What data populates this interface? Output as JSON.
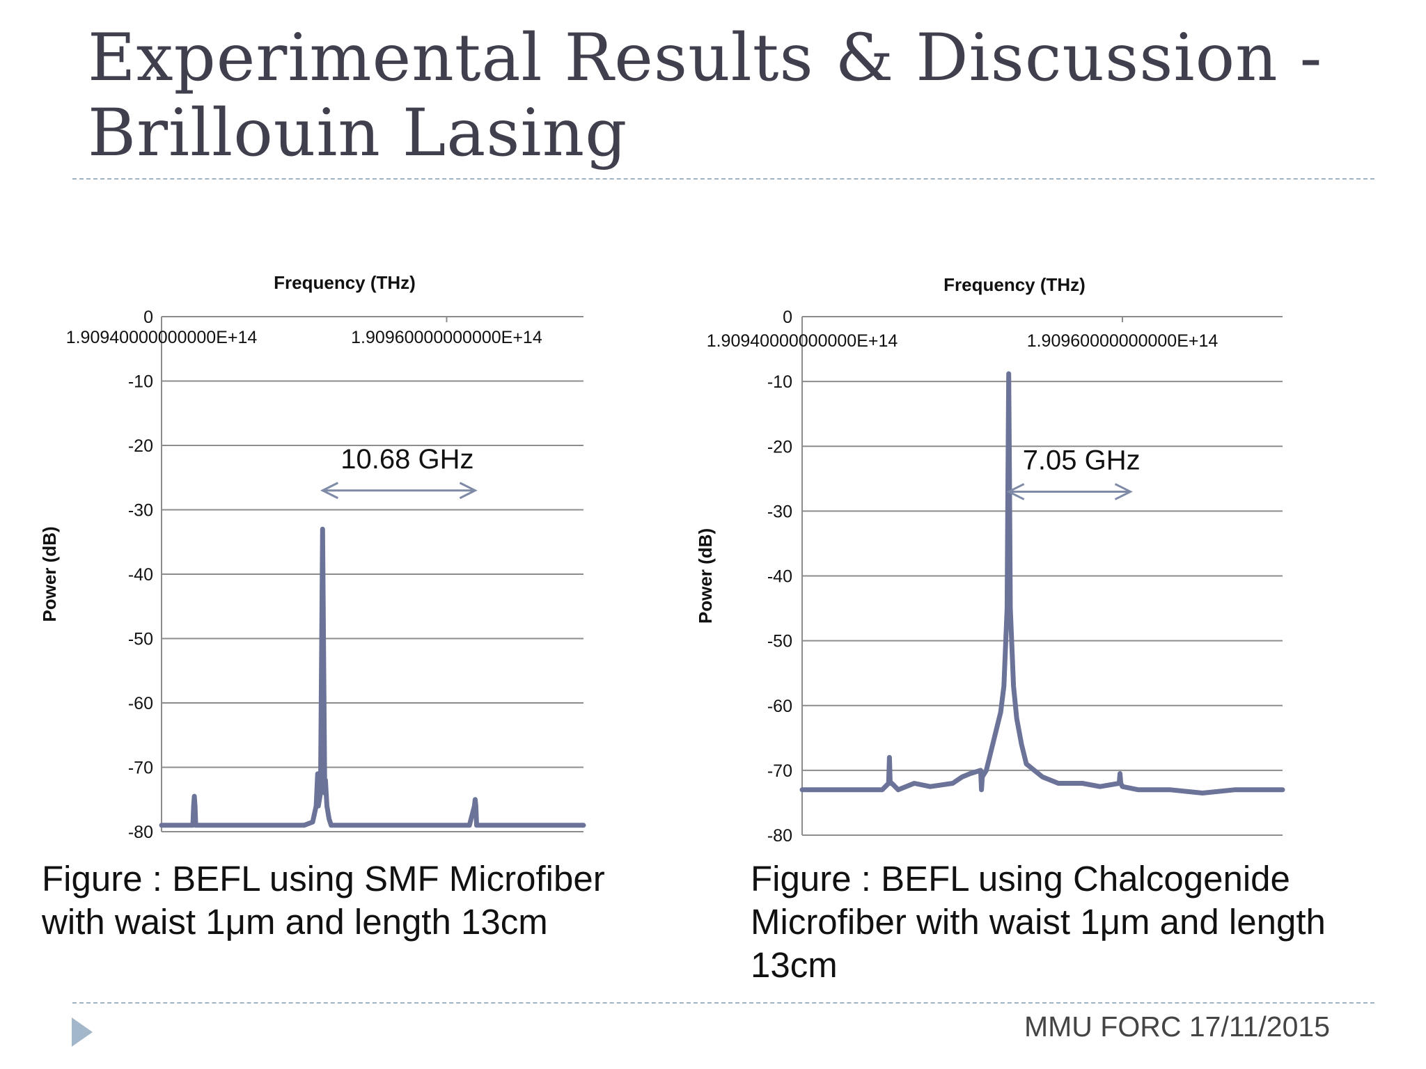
{
  "slide": {
    "title": "Experimental Results & Discussion - Brillouin Lasing",
    "footer": "MMU FORC 17/11/2015"
  },
  "captions": [
    "Figure : BEFL using SMF Microfiber with waist 1μm and length 13cm",
    "Figure : BEFL using Chalcogenide Microfiber with waist 1μm and length 13cm"
  ],
  "colors": {
    "series": "#6b7398",
    "grid": "#8c8c8c",
    "annotation": "#7e8aa6",
    "accent": "#a3b7ca"
  },
  "chart_data": [
    {
      "type": "line",
      "xlabel": "Frequency (THz)",
      "ylabel": "Power (dB)",
      "xlim": [
        190940000000000.0,
        190969600000000.0
      ],
      "ylim": [
        -80,
        0
      ],
      "yticks": [
        0,
        -10,
        -20,
        -30,
        -40,
        -50,
        -60,
        -70,
        -80
      ],
      "xticks": [
        190940000000000.0,
        190960000000000.0
      ],
      "xtick_labels": [
        "1.90940000000000E+14",
        "1.90960000000000E+14"
      ],
      "grid": true,
      "annotation": {
        "text": "10.68 GHz",
        "from": 190951300000000.0,
        "to": 190962000000000.0,
        "y": -27
      },
      "series": [
        {
          "x": [
            190940000000000.0,
            190942200000000.0,
            190942250000000.0,
            190942300000000.0,
            190942350000000.0,
            190942400000000.0,
            190945000000000.0,
            190948000000000.0,
            190950000000000.0,
            190950000000000.0,
            190950600000000.0,
            190950850000000.0,
            190950950000000.0,
            190951000000000.0,
            190951150000000.0,
            190951300000000.0,
            190951450000000.0,
            190951500000000.0,
            190951600000000.0,
            190951750000000.0,
            190951900000000.0,
            190952300000000.0,
            190955000000000.0,
            190958000000000.0,
            190961600000000.0,
            190961950000000.0,
            190962000000000.0,
            190962050000000.0,
            190962100000000.0,
            190964000000000.0,
            190966000000000.0,
            190969600000000.0
          ],
          "y": [
            -79,
            -79,
            -76,
            -74.5,
            -76,
            -79,
            -79,
            -79,
            -79,
            -79,
            -78.5,
            -76,
            -71,
            -76,
            -74,
            -33,
            -74,
            -72,
            -76,
            -78,
            -79,
            -79,
            -79,
            -79,
            -79,
            -76,
            -75,
            -76,
            -79,
            -79,
            -79,
            -79
          ]
        }
      ]
    },
    {
      "type": "line",
      "xlabel": "Frequency (THz)",
      "ylabel": "Power (dB)",
      "xlim": [
        190940000000000.0,
        190970000000000.0
      ],
      "ylim": [
        -80,
        0
      ],
      "yticks": [
        0,
        -10,
        -20,
        -30,
        -40,
        -50,
        -60,
        -70,
        -80
      ],
      "xticks": [
        190940000000000.0,
        190960000000000.0
      ],
      "xtick_labels": [
        "1.90940000000000E+14",
        "1.90960000000000E+14"
      ],
      "grid": true,
      "annotation": {
        "text": "7.05 GHz",
        "from": 190952900000000.0,
        "to": 190960500000000.0,
        "y": -27
      },
      "series": [
        {
          "x": [
            190940000000000.0,
            190945000000000.0,
            190945400000000.0,
            190945450000000.0,
            190945500000000.0,
            190945600000000.0,
            190946000000000.0,
            190947000000000.0,
            190948000000000.0,
            190949400000000.0,
            190950000000000.0,
            190950500000000.0,
            190951150000000.0,
            190951200000000.0,
            190951250000000.0,
            190951500000000.0,
            190951700000000.0,
            190952000000000.0,
            190952400000000.0,
            190952600000000.0,
            190952800000000.0,
            190952850000000.0,
            190952900000000.0,
            190952950000000.0,
            190953000000000.0,
            190953200000000.0,
            190953400000000.0,
            190953700000000.0,
            190954000000000.0,
            190954500000000.0,
            190955000000000.0,
            190956000000000.0,
            190957500000000.0,
            190958600000000.0,
            190959800000000.0,
            190959850000000.0,
            190959900000000.0,
            190960000000000.0,
            190961000000000.0,
            190963000000000.0,
            190965000000000.0,
            190967000000000.0,
            190970000000000.0
          ],
          "y": [
            -73,
            -73,
            -72,
            -68,
            -72,
            -72,
            -73,
            -72,
            -72.5,
            -72,
            -71,
            -70.5,
            -70,
            -73,
            -71,
            -70,
            -68,
            -65,
            -61,
            -57,
            -45,
            -25,
            -8.8,
            -25,
            -45,
            -57,
            -62,
            -66,
            -69,
            -70,
            -71,
            -72,
            -72,
            -72.5,
            -72,
            -70.5,
            -72,
            -72.5,
            -73,
            -73,
            -73.5,
            -73,
            -73
          ]
        }
      ]
    }
  ]
}
